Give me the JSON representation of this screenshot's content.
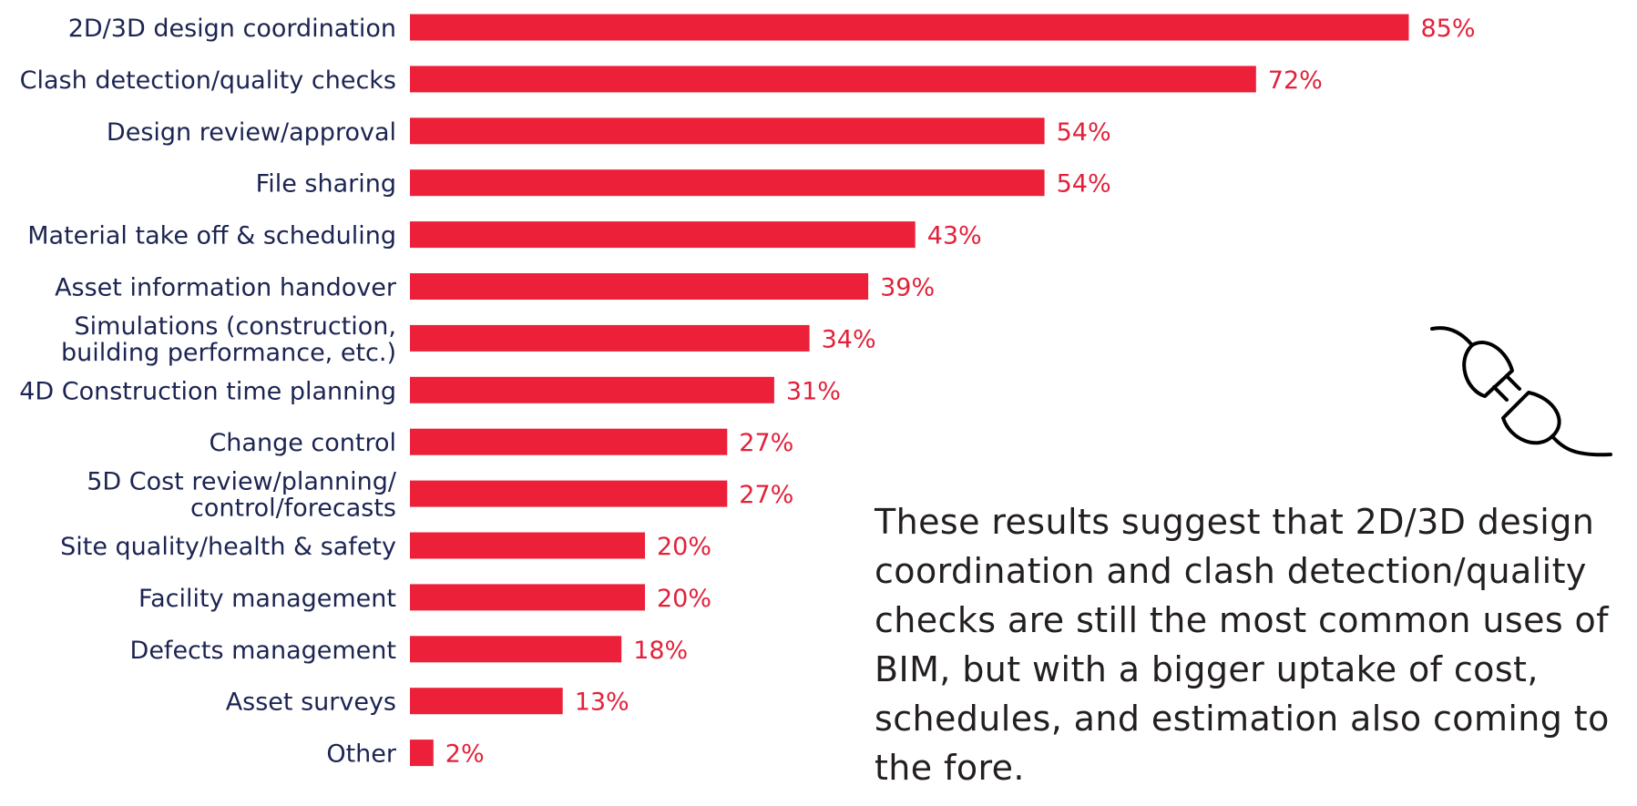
{
  "colors": {
    "bar": "#ec2139",
    "value_text": "#e2213a",
    "label_text": "#1c2452",
    "body_text": "#231f20"
  },
  "chart_data": {
    "type": "bar",
    "orientation": "horizontal",
    "title": "",
    "xlabel": "",
    "ylabel": "",
    "xlim": [
      0,
      100
    ],
    "value_suffix": "%",
    "categories": [
      [
        "2D/3D design coordination"
      ],
      [
        "Clash detection/quality checks"
      ],
      [
        "Design review/approval"
      ],
      [
        "File sharing"
      ],
      [
        "Material take off & scheduling"
      ],
      [
        "Asset information handover"
      ],
      [
        "Simulations (construction,",
        "building performance, etc.)"
      ],
      [
        "4D Construction time planning"
      ],
      [
        "Change control"
      ],
      [
        "5D Cost review/planning/",
        "control/forecasts"
      ],
      [
        "Site quality/health & safety"
      ],
      [
        "Facility management"
      ],
      [
        "Defects management"
      ],
      [
        "Asset surveys"
      ],
      [
        "Other"
      ]
    ],
    "values": [
      85,
      72,
      54,
      54,
      43,
      39,
      34,
      31,
      27,
      27,
      20,
      20,
      18,
      13,
      2
    ]
  },
  "summary_text": "These results suggest that 2D/3D design coordination and clash detection/quality checks are still the most common uses of BIM, but with a bigger uptake of cost, schedules, and estimation also coming to the fore.",
  "icon": "unplugged-connector-icon"
}
